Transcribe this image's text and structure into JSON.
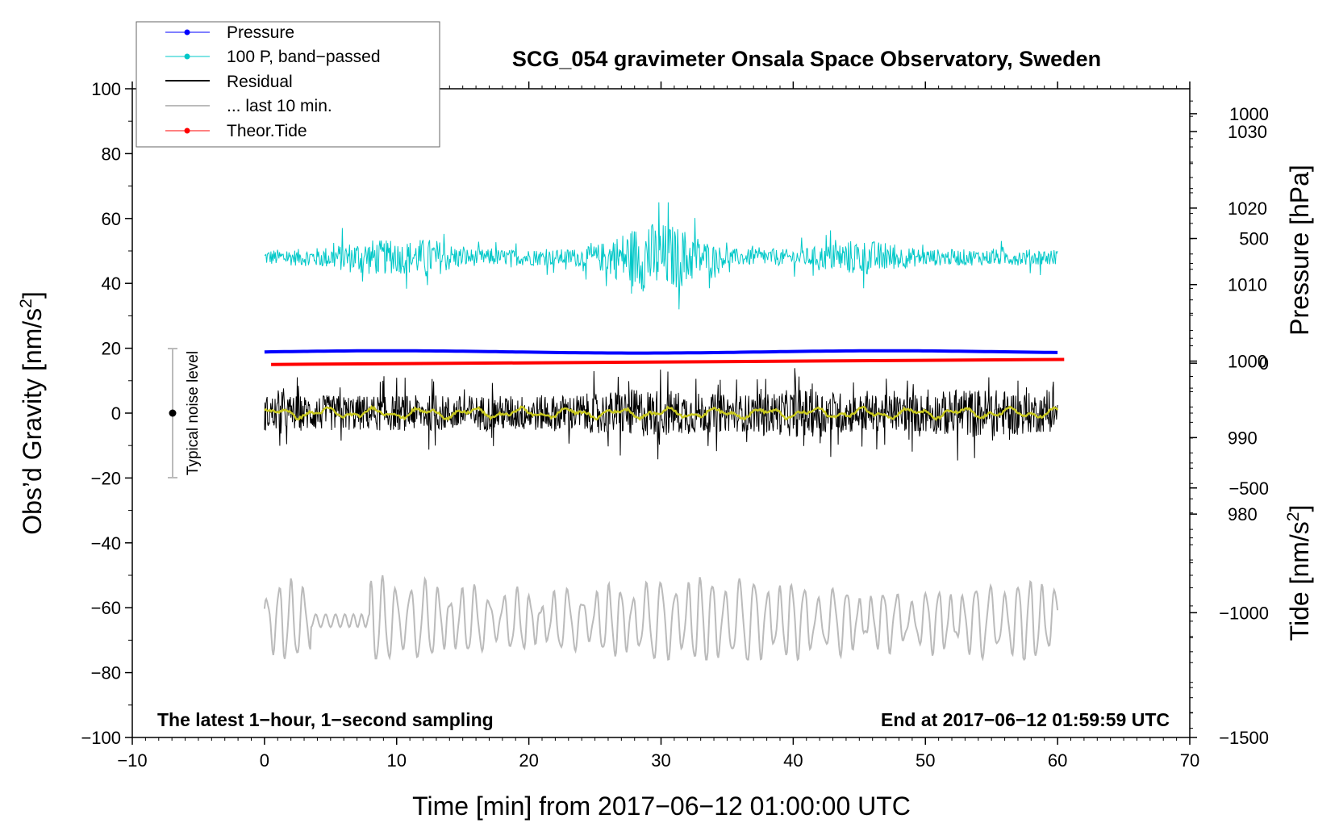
{
  "chart_data": {
    "type": "line",
    "title": "SCG_054 gravimeter Onsala Space Observatory, Sweden",
    "xlabel": "Time [min] from 2017−06−12 01:00:00 UTC",
    "ylabel": "Obs’d Gravity [nm/s²]",
    "ylabel_parts": {
      "base": "Obs’d Gravity [nm/s",
      "sup": "2",
      "close": "]"
    },
    "xlim": [
      -10,
      70
    ],
    "ylim": [
      -100,
      100
    ],
    "x_ticks": [
      -10,
      0,
      10,
      20,
      30,
      40,
      50,
      60,
      70
    ],
    "x_tick_labels": [
      "−10",
      "0",
      "10",
      "20",
      "30",
      "40",
      "50",
      "60",
      "70"
    ],
    "y_ticks": [
      -100,
      -80,
      -60,
      -40,
      -20,
      0,
      20,
      40,
      60,
      80,
      100
    ],
    "y_tick_labels": [
      "−100",
      "−80",
      "−60",
      "−40",
      "−20",
      "0",
      "20",
      "40",
      "60",
      "80",
      "100"
    ],
    "pressure_axis": {
      "label": "Pressure [hPa]",
      "ticks": [
        980,
        990,
        1000,
        1010,
        1020,
        1030
      ],
      "tick_labels": [
        "980",
        "990",
        "1000",
        "1010",
        "1020",
        "1030"
      ],
      "range": [
        950.8,
        1035.6
      ]
    },
    "tide_axis": {
      "label_parts": {
        "base": "Tide [nm/s",
        "sup": "2",
        "close": "]"
      },
      "ticks": [
        -1500,
        -1000,
        -500,
        0,
        500,
        1000
      ],
      "tick_labels": [
        "−1500",
        "−1000",
        "−500",
        "0",
        "500",
        "1000"
      ],
      "range": [
        -1500,
        1100
      ]
    },
    "annotations": {
      "bottom_left": "The latest 1−hour, 1−second sampling",
      "bottom_right": "End at 2017−06−12 01:59:59 UTC",
      "noise": "Typical noise level",
      "noise_range": [
        -20,
        20
      ]
    },
    "series": [
      {
        "name": "Pressure",
        "color": "#0000ff",
        "axis": "pressure",
        "approx_value_hPa": 1001.2,
        "x_range": [
          0,
          60
        ]
      },
      {
        "name": "100 P, band−passed",
        "color": "#00c8c8",
        "axis": "gravity",
        "baseline": 48,
        "amplitude_range": [
          -16,
          17
        ],
        "x_range": [
          0,
          60
        ]
      },
      {
        "name": "Residual",
        "color": "#000000",
        "axis": "gravity",
        "baseline": 0,
        "amplitude_range": [
          -15,
          15
        ],
        "x_range": [
          0,
          60
        ]
      },
      {
        "name": "... last 10 min.",
        "color": "#bbbbbb",
        "axis": "gravity",
        "baseline": -64,
        "amplitude_range": [
          -76,
          -50
        ],
        "x_range": [
          0,
          60
        ]
      },
      {
        "name": "Theor.Tide",
        "color": "#ff0000",
        "axis": "tide",
        "start_value": -5,
        "end_value": 15,
        "x_range": [
          0.5,
          60.5
        ]
      }
    ],
    "smoothed_residual": {
      "color": "#c8c81e",
      "baseline": 0,
      "amplitude_range": [
        -2,
        2
      ]
    }
  }
}
